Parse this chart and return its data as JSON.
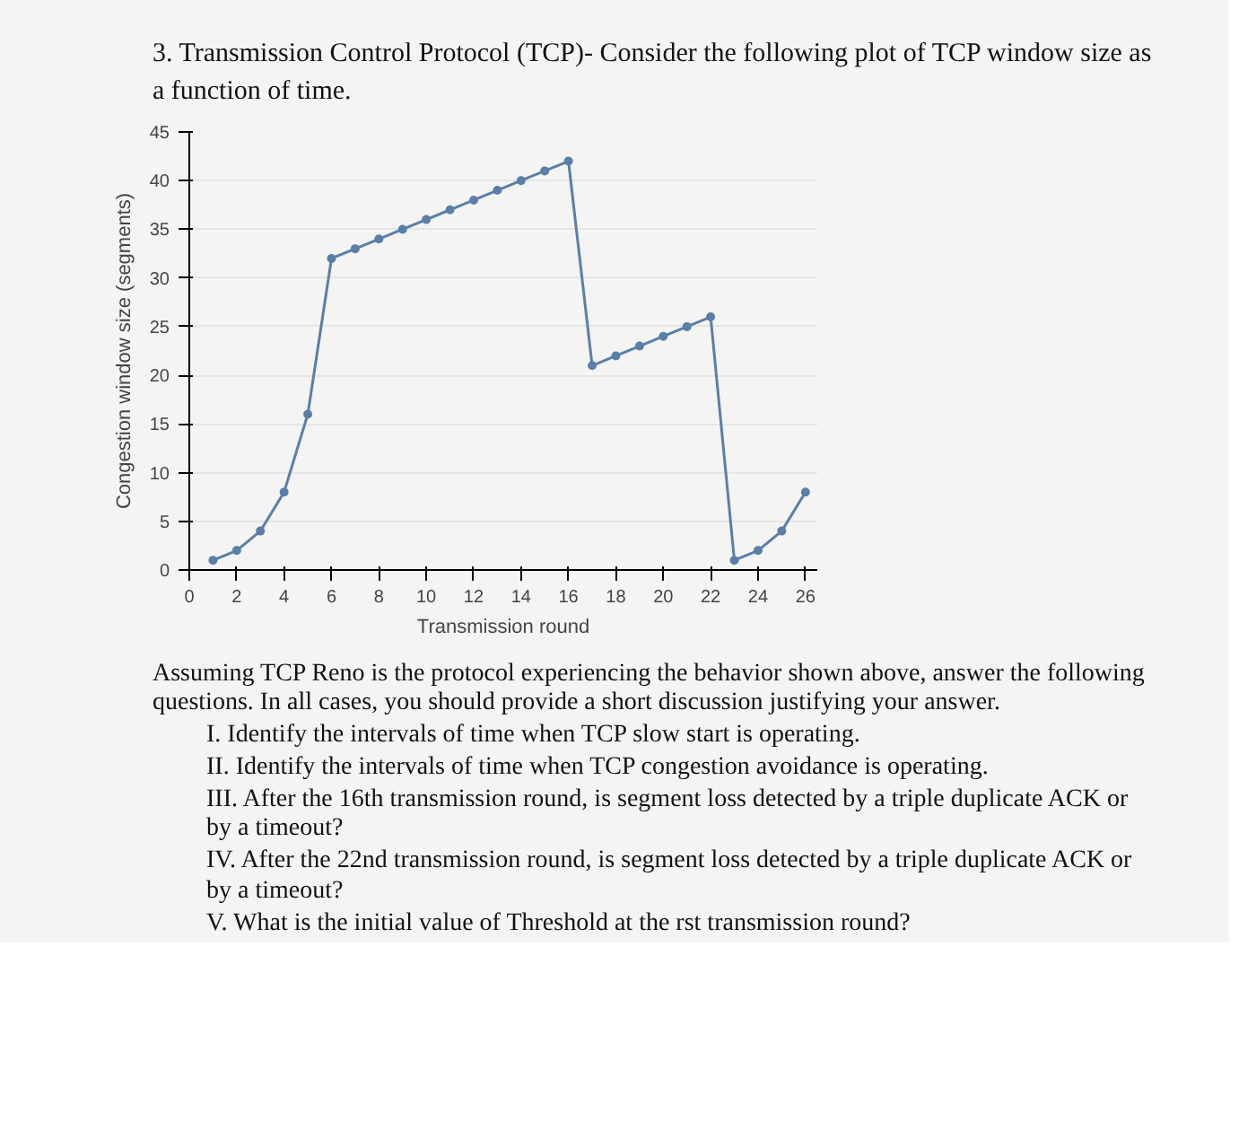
{
  "chart_data": {
    "type": "line",
    "title": "3. Transmission Control Protocol (TCP)- Consider the following plot of TCP window size as a function of time.",
    "xlabel": "Transmission round",
    "ylabel": "Congestion window size (segments)",
    "x": [
      1,
      2,
      3,
      4,
      5,
      6,
      7,
      8,
      9,
      10,
      11,
      12,
      13,
      14,
      15,
      16,
      17,
      18,
      19,
      20,
      21,
      22,
      23,
      24,
      25,
      26
    ],
    "series": [
      {
        "color": "#5a7fa8",
        "values": [
          1,
          2,
          4,
          8,
          16,
          32,
          33,
          34,
          35,
          36,
          37,
          38,
          39,
          40,
          41,
          42,
          21,
          22,
          23,
          24,
          25,
          26,
          1,
          2,
          4,
          8
        ]
      }
    ],
    "xlim": [
      0,
      26.5
    ],
    "ylim": [
      0,
      45
    ],
    "xticks": [
      0,
      2,
      4,
      6,
      8,
      10,
      12,
      14,
      16,
      18,
      20,
      22,
      24,
      26
    ],
    "yticks": [
      0,
      5,
      10,
      15,
      20,
      25,
      30,
      35,
      40,
      45
    ],
    "grid": "y",
    "marker": "circle",
    "line_style": "solid",
    "annotations": [
      "Assuming TCP Reno is the protocol experiencing the behavior shown above, answer the following questions. In all cases, you should provide a short discussion justifying your answer.",
      "I. Identify the intervals of time when TCP slow start is operating.",
      "II. Identify the intervals of time when TCP congestion avoidance is operating.",
      "III. After the 16th transmission round, is segment loss detected by a triple duplicate ACK or by a timeout?",
      "IV. After the 22nd transmission round, is segment loss detected by a triple duplicate ACK or by a timeout?",
      "V. What is the initial value of Threshold at the rst transmission round?"
    ]
  }
}
